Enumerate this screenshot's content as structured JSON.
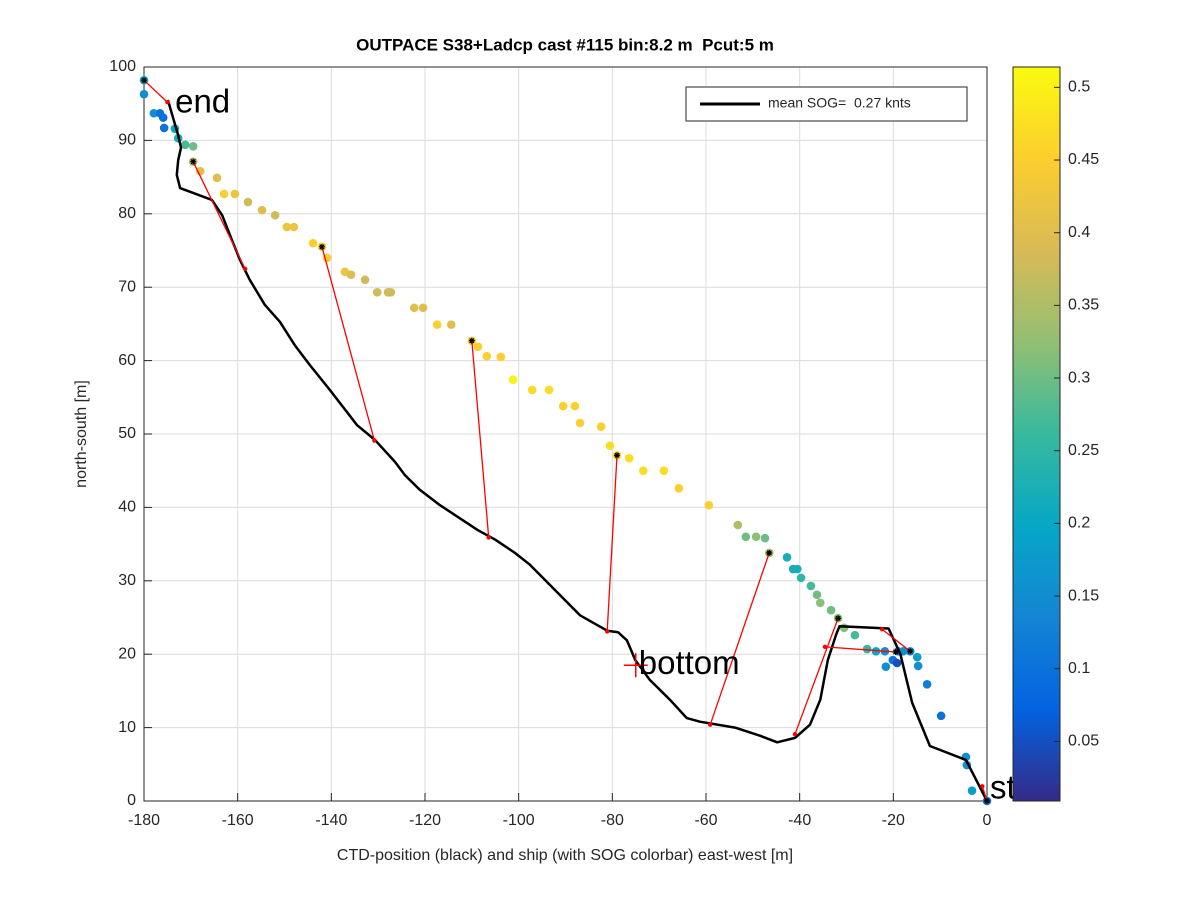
{
  "chart_data": {
    "type": "scatter",
    "title": "OUTPACE S38+Ladcp cast #115 bin:8.2 m  Pcut:5 m",
    "xlabel": "CTD-position (black) and ship (with SOG colorbar) east-west [m]",
    "ylabel": "north-south [m]",
    "xlim": [
      -180,
      0
    ],
    "ylim": [
      0,
      100
    ],
    "xticks": [
      -180,
      -160,
      -140,
      -120,
      -100,
      -80,
      -60,
      -40,
      -20,
      0
    ],
    "yticks": [
      0,
      10,
      20,
      30,
      40,
      50,
      60,
      70,
      80,
      90,
      100
    ],
    "grid": true,
    "ship": {
      "x": [
        -180,
        -180,
        -177.9,
        -176.6,
        -175.9,
        -175.7,
        -173.4,
        -172.7,
        -171.2,
        -169.5,
        -169.5,
        -168,
        -164.4,
        -162.9,
        -160.6,
        -157.8,
        -154.8,
        -152,
        -149.5,
        -148,
        -143.9,
        -142,
        -140.9,
        -137.1,
        -135.8,
        -132.8,
        -130.2,
        -127.9,
        -127.3,
        -122.3,
        -120.4,
        -117.4,
        -114.4,
        -110,
        -108.7,
        -106.8,
        -103.8,
        -101.2,
        -97.1,
        -93.5,
        -90.5,
        -88,
        -86.9,
        -82.4,
        -80.5,
        -79,
        -76.4,
        -73.4,
        -69,
        -65.8,
        -59.4,
        -53.2,
        -51.5,
        -49.3,
        -47.4,
        -46.5,
        -42.7,
        -41.4,
        -40.5,
        -39.7,
        -37.6,
        -36.3,
        -35.6,
        -33.3,
        -31.8,
        -30.5,
        -28.2,
        -25.6,
        -23.7,
        -21.8,
        -21.6,
        -20.1,
        -19.2,
        -19,
        -17.9,
        -16.4,
        -14.9,
        -14.7,
        -12.8,
        -9.8,
        -4.5,
        -4.3,
        -3.2,
        0
      ],
      "y": [
        96.3,
        98.2,
        93.7,
        93.7,
        93.1,
        91.7,
        91.6,
        90.3,
        89.4,
        89.2,
        87.1,
        85.8,
        84.9,
        82.7,
        82.7,
        81.6,
        80.5,
        79.8,
        78.2,
        78.2,
        76.0,
        75.5,
        74.0,
        72.1,
        71.7,
        71.0,
        69.3,
        69.3,
        69.3,
        67.2,
        67.2,
        64.9,
        64.9,
        62.7,
        61.9,
        60.6,
        60.5,
        57.4,
        56.0,
        56.0,
        53.8,
        53.8,
        51.5,
        51.0,
        48.4,
        47.1,
        46.7,
        45.0,
        45.0,
        42.6,
        40.3,
        37.6,
        36.0,
        36.0,
        35.8,
        33.8,
        33.2,
        31.6,
        31.6,
        30.4,
        29.3,
        28.1,
        27.0,
        26.0,
        24.9,
        23.6,
        22.6,
        20.7,
        20.4,
        20.4,
        18.3,
        19.2,
        18.8,
        20.4,
        20.4,
        20.4,
        19.6,
        18.4,
        15.9,
        11.6,
        6.0,
        4.9,
        1.4,
        0
      ],
      "values": [
        0.15,
        0.2,
        0.15,
        0.1,
        0.1,
        0.1,
        0.2,
        0.22,
        0.27,
        0.3,
        0.35,
        0.4,
        0.4,
        0.45,
        0.42,
        0.38,
        0.4,
        0.38,
        0.42,
        0.42,
        0.45,
        0.45,
        0.45,
        0.42,
        0.4,
        0.38,
        0.38,
        0.38,
        0.38,
        0.4,
        0.4,
        0.45,
        0.4,
        0.45,
        0.45,
        0.45,
        0.45,
        0.5,
        0.47,
        0.47,
        0.45,
        0.45,
        0.45,
        0.45,
        0.47,
        0.47,
        0.47,
        0.47,
        0.47,
        0.45,
        0.45,
        0.35,
        0.3,
        0.32,
        0.3,
        0.35,
        0.22,
        0.22,
        0.22,
        0.25,
        0.27,
        0.3,
        0.32,
        0.3,
        0.32,
        0.32,
        0.27,
        0.25,
        0.2,
        0.15,
        0.15,
        0.1,
        0.05,
        0.12,
        0.15,
        0.15,
        0.18,
        0.15,
        0.12,
        0.1,
        0.15,
        0.15,
        0.18,
        0.1
      ]
    },
    "ctd": {
      "x": [
        0,
        -4.5,
        -12.2,
        -16,
        -18.5,
        -21,
        -31.5,
        -32.2,
        -34,
        -35.6,
        -37.8,
        -41,
        -44.8,
        -48.5,
        -53.8,
        -61.3,
        -64.1,
        -67.7,
        -72,
        -75.1,
        -76.9,
        -78.8,
        -81.1,
        -86.9,
        -92.2,
        -97.6,
        -100.8,
        -105,
        -108.7,
        -116.8,
        -121.1,
        -124.3,
        -126.4,
        -130.7,
        -134.5,
        -140.3,
        -144.6,
        -147.8,
        -151,
        -154.2,
        -157.4,
        -159.5,
        -161.2,
        -163.3,
        -165.5,
        -172.3,
        -173,
        -172.7,
        -172.1,
        -172.7,
        -173.8,
        -174.9
      ],
      "y": [
        0,
        5.6,
        7.5,
        13.4,
        20,
        23.5,
        23.8,
        22.7,
        19.2,
        13.8,
        10.4,
        8.6,
        8.0,
        8.9,
        10,
        10.8,
        11.3,
        13.8,
        16.5,
        19.2,
        21.9,
        23.0,
        23.2,
        25.3,
        28.7,
        32.2,
        33.8,
        35.6,
        36.9,
        40.3,
        42.4,
        44.4,
        46.2,
        49.2,
        51.2,
        56.0,
        59.4,
        62.1,
        65.3,
        67.6,
        71.0,
        73.7,
        76.4,
        79.8,
        81.9,
        83.5,
        85.3,
        87.3,
        89,
        90.7,
        93.1,
        95.5
      ]
    },
    "links": [
      {
        "x": [
          -180,
          -175
        ],
        "y": [
          98.2,
          95.2
        ]
      },
      {
        "x": [
          -169.5,
          -158.4
        ],
        "y": [
          87.1,
          72.5
        ]
      },
      {
        "x": [
          -142,
          -130.8
        ],
        "y": [
          75.5,
          49.1
        ]
      },
      {
        "x": [
          -110,
          -106.4
        ],
        "y": [
          62.7,
          35.9
        ]
      },
      {
        "x": [
          -79,
          -81.1
        ],
        "y": [
          47.1,
          23.1
        ]
      },
      {
        "x": [
          -46.5,
          -59.1
        ],
        "y": [
          33.8,
          10.4
        ]
      },
      {
        "x": [
          -31.8,
          -41
        ],
        "y": [
          24.9,
          9.1
        ]
      },
      {
        "x": [
          -19.5,
          -34.6
        ],
        "y": [
          20.3,
          21.0
        ]
      },
      {
        "x": [
          -16.4,
          -22.4
        ],
        "y": [
          20.4,
          23.4
        ]
      },
      {
        "x": [
          0,
          -1
        ],
        "y": [
          0,
          2
        ]
      }
    ],
    "annotations": [
      {
        "text": "end",
        "x": -174,
        "y": 95
      },
      {
        "text": "bottom",
        "x": -75,
        "y": 18.5
      },
      {
        "text": "start",
        "x": 0,
        "y": 1.5
      }
    ],
    "bottom_marker": {
      "x": -75,
      "y": 18.5,
      "color": "#ff0000"
    },
    "legend": {
      "label": "mean SOG=  0.27 knts",
      "corner": "northeast",
      "color": "#000000"
    },
    "link_color": "#ff0000",
    "colorbar": {
      "lim": [
        0.009,
        0.514
      ],
      "ticks": [
        0.05,
        0.1,
        0.15,
        0.2,
        0.25,
        0.3,
        0.35,
        0.4,
        0.45,
        0.5
      ]
    }
  }
}
